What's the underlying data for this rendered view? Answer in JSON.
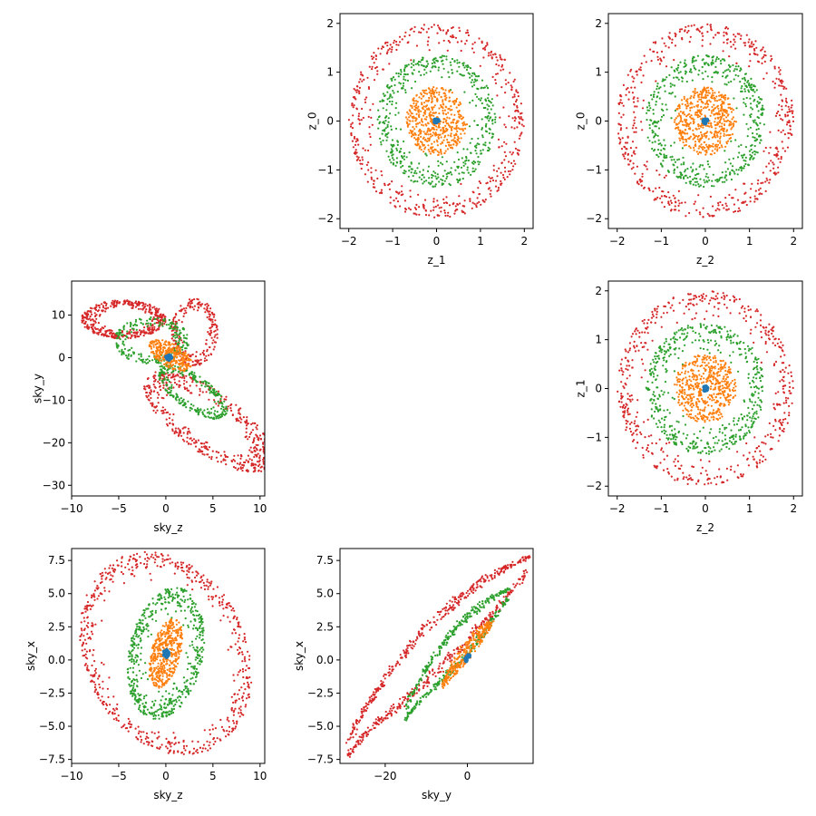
{
  "colors": {
    "ring_r0": "#1f77b4",
    "ring_r1": "#ff7f0e",
    "ring_r2": "#2ca02c",
    "ring_r3": "#d62728"
  },
  "chart_data": [
    {
      "id": "z1_z0",
      "type": "scatter",
      "grid": false,
      "xlabel": "z_1",
      "ylabel": "z_0",
      "xlim": [
        -2.2,
        2.2
      ],
      "ylim": [
        -2.2,
        2.2
      ],
      "xticks": [
        -2,
        -1,
        0,
        1,
        2
      ],
      "yticks": [
        -2,
        -1,
        0,
        1,
        2
      ],
      "xtick_labels": [
        "−2",
        "−1",
        "0",
        "1",
        "2"
      ],
      "ytick_labels": [
        "−2",
        "−1",
        "0",
        "1",
        "2"
      ],
      "pattern": "concentric",
      "radii": [
        0.05,
        0.7,
        1.35,
        2.0
      ],
      "points_per_ring": [
        20,
        500,
        500,
        500
      ]
    },
    {
      "id": "z2_z0",
      "type": "scatter",
      "grid": false,
      "xlabel": "z_2",
      "ylabel": "z_0",
      "xlim": [
        -2.2,
        2.2
      ],
      "ylim": [
        -2.2,
        2.2
      ],
      "xticks": [
        -2,
        -1,
        0,
        1,
        2
      ],
      "yticks": [
        -2,
        -1,
        0,
        1,
        2
      ],
      "xtick_labels": [
        "−2",
        "−1",
        "0",
        "1",
        "2"
      ],
      "ytick_labels": [
        "−2",
        "−1",
        "0",
        "1",
        "2"
      ],
      "pattern": "concentric",
      "radii": [
        0.05,
        0.7,
        1.35,
        2.0
      ],
      "points_per_ring": [
        20,
        500,
        500,
        500
      ]
    },
    {
      "id": "skyz_skyy",
      "type": "scatter",
      "grid": false,
      "xlabel": "sky_z",
      "ylabel": "sky_y",
      "xlim": [
        -10,
        10.5
      ],
      "ylim": [
        -32.5,
        18
      ],
      "xticks": [
        -10,
        -5,
        0,
        5,
        10
      ],
      "yticks": [
        -30,
        -20,
        -10,
        0,
        10
      ],
      "xtick_labels": [
        "−10",
        "−5",
        "0",
        "5",
        "10"
      ],
      "ytick_labels": [
        "−30",
        "−20",
        "−10",
        "0",
        "10"
      ],
      "pattern": "blobs",
      "blobs": [
        {
          "ring": 3,
          "n": 420,
          "cx": -4.5,
          "cy": 9.0,
          "rx": 4.5,
          "ry": 4.5,
          "angle": 0
        },
        {
          "ring": 3,
          "n": 220,
          "cx": 3.0,
          "cy": 6.0,
          "rx": 2.5,
          "ry": 8.0,
          "angle": 0
        },
        {
          "ring": 3,
          "n": 480,
          "cx": 4.5,
          "cy": -15.0,
          "rx": 4.5,
          "ry": 13.0,
          "angle": 25
        },
        {
          "ring": 2,
          "n": 240,
          "cx": -1.5,
          "cy": 4.0,
          "rx": 4.0,
          "ry": 5.5,
          "angle": 0
        },
        {
          "ring": 2,
          "n": 260,
          "cx": 2.8,
          "cy": -8.0,
          "rx": 2.5,
          "ry": 7.0,
          "angle": 25
        },
        {
          "ring": 1,
          "n": 300,
          "cx": 0.5,
          "cy": 0.5,
          "rx": 1.8,
          "ry": 4.0,
          "angle": 25
        },
        {
          "ring": 0,
          "n": 20,
          "cx": 0.3,
          "cy": 0.0,
          "rx": 0.3,
          "ry": 0.6,
          "angle": 0
        }
      ]
    },
    {
      "id": "z2_z1",
      "type": "scatter",
      "grid": false,
      "xlabel": "z_2",
      "ylabel": "z_1",
      "xlim": [
        -2.2,
        2.2
      ],
      "ylim": [
        -2.2,
        2.2
      ],
      "xticks": [
        -2,
        -1,
        0,
        1,
        2
      ],
      "yticks": [
        -2,
        -1,
        0,
        1,
        2
      ],
      "xtick_labels": [
        "−2",
        "−1",
        "0",
        "1",
        "2"
      ],
      "ytick_labels": [
        "−2",
        "−1",
        "0",
        "1",
        "2"
      ],
      "pattern": "concentric",
      "radii": [
        0.05,
        0.7,
        1.35,
        2.0
      ],
      "points_per_ring": [
        20,
        500,
        500,
        500
      ]
    },
    {
      "id": "skyz_skyx",
      "type": "scatter",
      "grid": false,
      "xlabel": "sky_z",
      "ylabel": "sky_x",
      "xlim": [
        -10,
        10.5
      ],
      "ylim": [
        -7.8,
        8.4
      ],
      "xticks": [
        -10,
        -5,
        0,
        5,
        10
      ],
      "yticks": [
        -7.5,
        -5.0,
        -2.5,
        0.0,
        2.5,
        5.0,
        7.5
      ],
      "xtick_labels": [
        "−10",
        "−5",
        "0",
        "5",
        "10"
      ],
      "ytick_labels": [
        "−7.5",
        "−5.0",
        "−2.5",
        "0.0",
        "2.5",
        "5.0",
        "7.5"
      ],
      "pattern": "ellipses",
      "center": [
        0,
        0.5
      ],
      "angle": -25,
      "semi_axes": [
        [
          0.3,
          0.3
        ],
        [
          1.5,
          2.8
        ],
        [
          3.8,
          5.2
        ],
        [
          9.5,
          7.2
        ]
      ],
      "points_per_ring": [
        20,
        450,
        550,
        600
      ]
    },
    {
      "id": "skyy_skyx",
      "type": "scatter",
      "grid": false,
      "xlabel": "sky_y",
      "ylabel": "sky_x",
      "xlim": [
        -31,
        16
      ],
      "ylim": [
        -7.8,
        8.4
      ],
      "xticks": [
        -20,
        0
      ],
      "yticks": [
        -7.5,
        -5.0,
        -2.5,
        0.0,
        2.5,
        5.0,
        7.5
      ],
      "xtick_labels": [
        "−20",
        "0"
      ],
      "ytick_labels": [
        "−7.5",
        "−5.0",
        "−2.5",
        "0.0",
        "2.5",
        "5.0",
        "7.5"
      ],
      "pattern": "banana",
      "bands": [
        {
          "ring": 3,
          "n": 650,
          "x0": -29,
          "x1": 15,
          "y0": -6.8,
          "y1": 7.3,
          "w": 2.4,
          "s": 0.35
        },
        {
          "ring": 2,
          "n": 450,
          "x0": -15,
          "x1": 10,
          "y0": -4.2,
          "y1": 5.0,
          "w": 1.7,
          "s": 0.3
        },
        {
          "ring": 1,
          "n": 300,
          "x0": -6,
          "x1": 6,
          "y0": -2.0,
          "y1": 2.8,
          "w": 0.9,
          "s": 0.2
        },
        {
          "ring": 0,
          "n": 15,
          "x0": -0.5,
          "x1": 0.5,
          "y0": -0.1,
          "y1": 0.3,
          "w": 0.2,
          "s": 0.1
        }
      ]
    }
  ]
}
